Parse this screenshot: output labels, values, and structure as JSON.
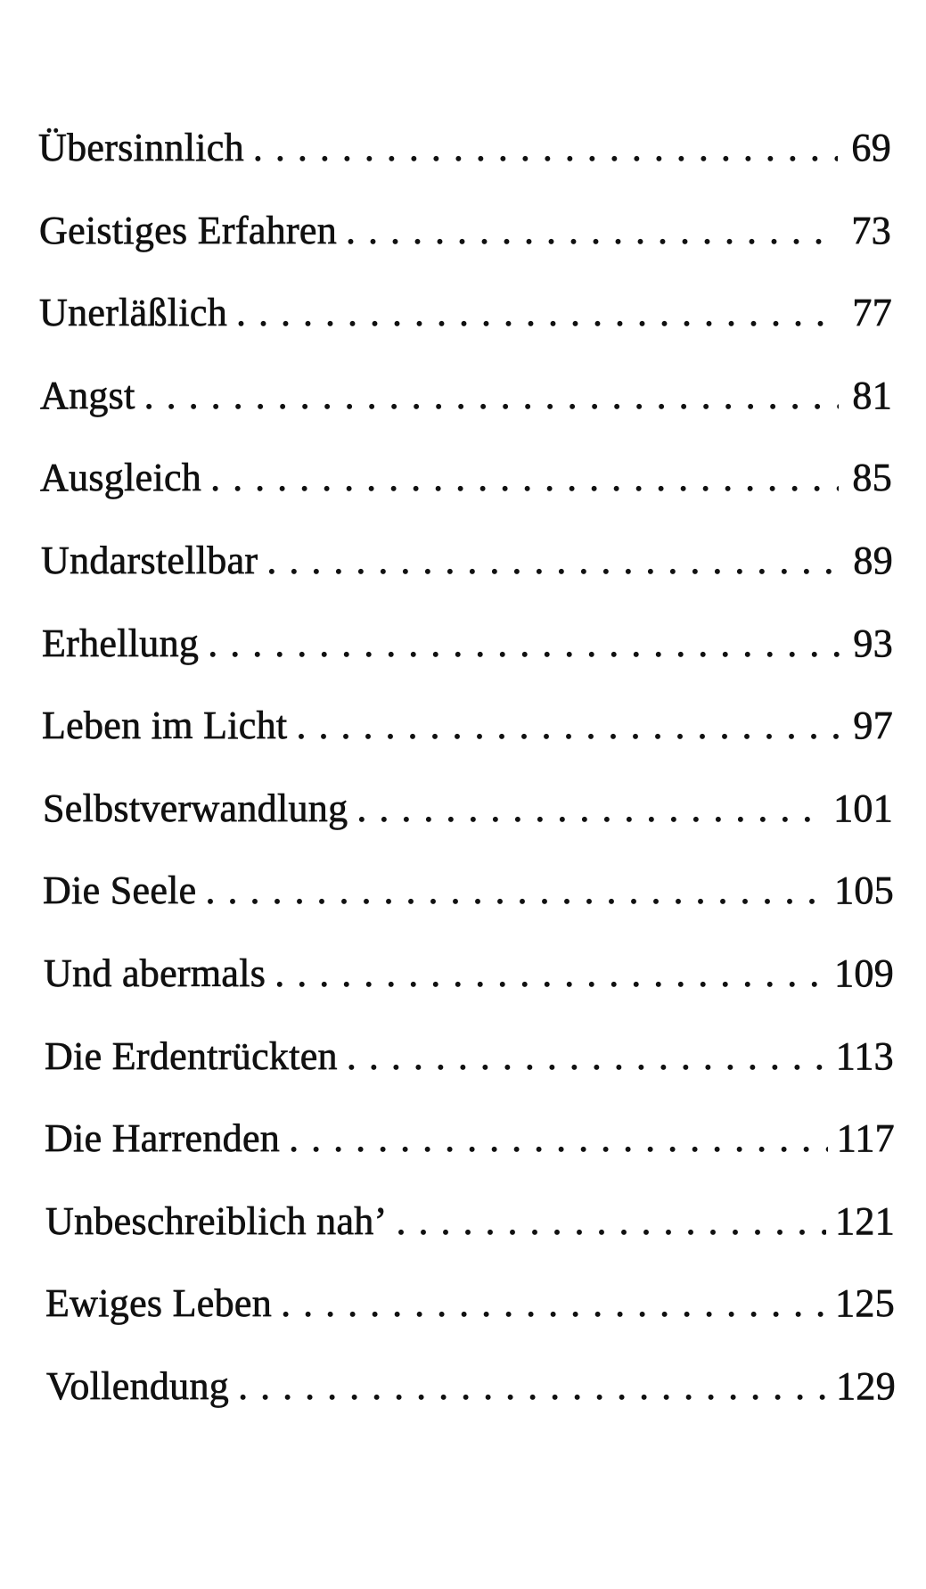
{
  "toc": {
    "entries": [
      {
        "title": "Übersinnlich",
        "page": "69"
      },
      {
        "title": "Geistiges Erfahren",
        "page": "73"
      },
      {
        "title": "Unerläßlich",
        "page": "77"
      },
      {
        "title": "Angst",
        "page": "81"
      },
      {
        "title": "Ausgleich",
        "page": "85"
      },
      {
        "title": "Undarstellbar",
        "page": "89"
      },
      {
        "title": "Erhellung",
        "page": "93"
      },
      {
        "title": "Leben im Licht",
        "page": "97"
      },
      {
        "title": "Selbstverwandlung",
        "page": "101"
      },
      {
        "title": "Die Seele",
        "page": "105"
      },
      {
        "title": "Und abermals",
        "page": "109"
      },
      {
        "title": "Die Erdentrückten",
        "page": "113"
      },
      {
        "title": "Die Harrenden",
        "page": "117"
      },
      {
        "title": "Unbeschreiblich nah’",
        "page": "121"
      },
      {
        "title": "Ewiges Leben",
        "page": "125"
      },
      {
        "title": "Vollendung",
        "page": "129"
      }
    ]
  }
}
